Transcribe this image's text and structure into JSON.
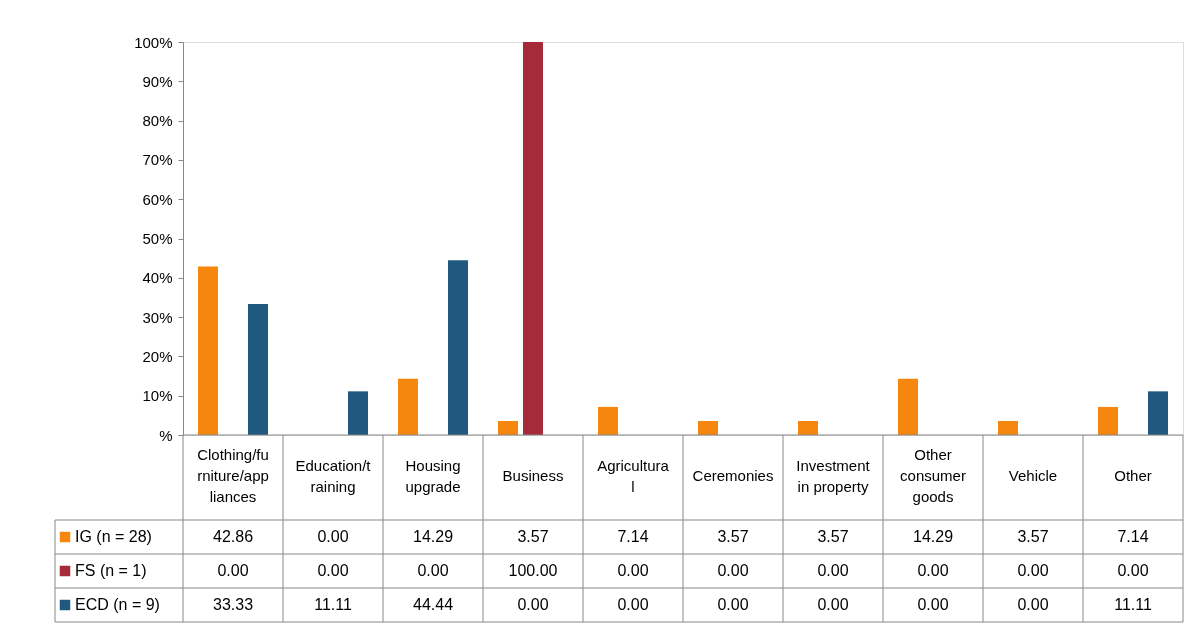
{
  "chart_data": {
    "type": "bar",
    "categories": [
      "Clothing/furniture/appliances",
      "Education/training",
      "Housing upgrade",
      "Business",
      "Agricultural",
      "Ceremonies",
      "Investment in property",
      "Other consumer goods",
      "Vehicle",
      "Other"
    ],
    "series": [
      {
        "name": "IG (n = 28)",
        "color": "#f5870f",
        "values": [
          42.86,
          0.0,
          14.29,
          3.57,
          7.14,
          3.57,
          3.57,
          14.29,
          3.57,
          7.14
        ],
        "value_labels": [
          "42.86",
          "0.00",
          "14.29",
          "3.57",
          "7.14",
          "3.57",
          "3.57",
          "14.29",
          "3.57",
          "7.14"
        ]
      },
      {
        "name": "FS (n = 1)",
        "color": "#a52a3a",
        "values": [
          0.0,
          0.0,
          0.0,
          100.0,
          0.0,
          0.0,
          0.0,
          0.0,
          0.0,
          0.0
        ],
        "value_labels": [
          "0.00",
          "0.00",
          "0.00",
          "100.00",
          "0.00",
          "0.00",
          "0.00",
          "0.00",
          "0.00",
          "0.00"
        ]
      },
      {
        "name": "ECD (n = 9)",
        "color": "#1f5a7e",
        "values": [
          33.33,
          11.11,
          44.44,
          0.0,
          0.0,
          0.0,
          0.0,
          0.0,
          0.0,
          11.11
        ],
        "value_labels": [
          "33.33",
          "11.11",
          "44.44",
          "0.00",
          "0.00",
          "0.00",
          "0.00",
          "0.00",
          "0.00",
          "11.11"
        ]
      }
    ],
    "ylim": [
      0,
      100
    ],
    "yticks": [
      {
        "value": 0,
        "label": "%"
      },
      {
        "value": 10,
        "label": "10%"
      },
      {
        "value": 20,
        "label": "20%"
      },
      {
        "value": 30,
        "label": "30%"
      },
      {
        "value": 40,
        "label": "40%"
      },
      {
        "value": 50,
        "label": "50%"
      },
      {
        "value": 60,
        "label": "60%"
      },
      {
        "value": 70,
        "label": "70%"
      },
      {
        "value": 80,
        "label": "80%"
      },
      {
        "value": 90,
        "label": "90%"
      },
      {
        "value": 100,
        "label": "100%"
      }
    ],
    "grid": false,
    "legend": "bottom left"
  }
}
